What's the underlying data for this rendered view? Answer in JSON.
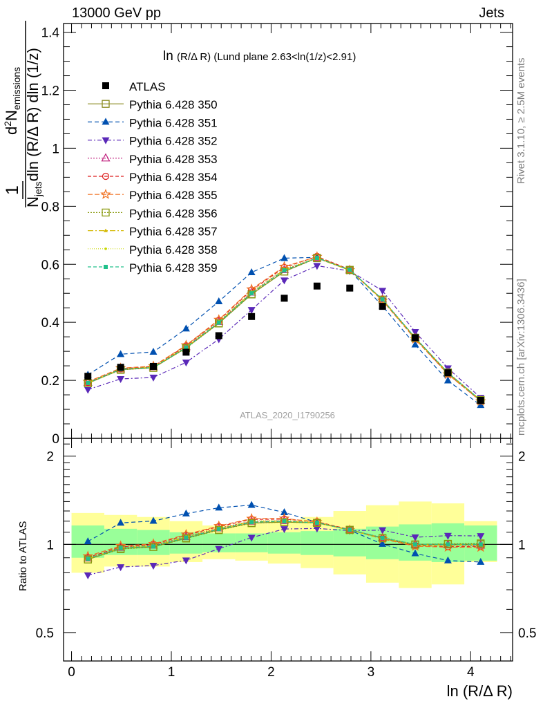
{
  "header": {
    "left": "13000 GeV pp",
    "right": "Jets"
  },
  "side_labels": {
    "rivet": "Rivet 3.1.10, ≥ 2.5M events",
    "mcplots": "mcplots.cern.ch [arXiv:1306.3436]"
  },
  "plot_title_main": "ln",
  "plot_title_sub": "(R/Δ R) (Lund plane 2.63<ln(1/z)<2.91)",
  "watermark": "ATLAS_2020_I1790256",
  "ylabel_top": {
    "frac_num_1": "1",
    "frac_den_1": "N",
    "frac_den_1_sub": "jets",
    "frac_den_1_rest": "dln (R/Δ R) dln (1/z)",
    "frac_num_2": "d",
    "frac_num_2_sup": "2",
    "frac_num_2_n": "N",
    "frac_num_2_sub": "emissions"
  },
  "ylabel_ratio": "Ratio to ATLAS",
  "xlabel": "ln (R/Δ R)",
  "chart_data": {
    "type": "scatter",
    "xlabel": "ln (R/Δ R)",
    "ylabel": "d²N_emissions / (N_jets dln(R/ΔR) dln(1/z))",
    "xlim": [
      -0.08,
      4.42
    ],
    "ylim_main": [
      0,
      1.43
    ],
    "ylim_ratio": [
      0.4,
      2.3
    ],
    "ratio_scale": "log",
    "xticks": [
      "0",
      "1",
      "2",
      "3",
      "4"
    ],
    "yticks_main": [
      "0",
      "0.2",
      "0.4",
      "0.6",
      "0.8",
      "1",
      "1.2",
      "1.4"
    ],
    "yticks_ratio": [
      "0.5",
      "1",
      "2"
    ],
    "x": [
      0.164,
      0.492,
      0.82,
      1.148,
      1.476,
      1.804,
      2.132,
      2.46,
      2.788,
      3.116,
      3.444,
      3.772,
      4.1
    ],
    "bin_edges": [
      0,
      0.328,
      0.656,
      0.984,
      1.312,
      1.64,
      1.968,
      2.296,
      2.624,
      2.952,
      3.28,
      3.608,
      3.936,
      4.264
    ],
    "data": {
      "name": "ATLAS",
      "values": [
        0.214,
        0.245,
        0.248,
        0.297,
        0.354,
        0.42,
        0.483,
        0.525,
        0.518,
        0.455,
        0.347,
        0.226,
        0.131
      ],
      "band_green_ratio": [
        [
          0.9,
          1.16
        ],
        [
          0.92,
          1.13
        ],
        [
          0.92,
          1.12
        ],
        [
          0.93,
          1.1
        ],
        [
          0.94,
          1.09
        ],
        [
          0.94,
          1.09
        ],
        [
          0.93,
          1.1
        ],
        [
          0.92,
          1.11
        ],
        [
          0.91,
          1.13
        ],
        [
          0.89,
          1.15
        ],
        [
          0.88,
          1.17
        ],
        [
          0.87,
          1.18
        ],
        [
          0.88,
          1.16
        ]
      ],
      "band_yellow_ratio": [
        [
          0.8,
          1.28
        ],
        [
          0.84,
          1.26
        ],
        [
          0.84,
          1.24
        ],
        [
          0.87,
          1.2
        ],
        [
          0.89,
          1.16
        ],
        [
          0.88,
          1.18
        ],
        [
          0.86,
          1.2
        ],
        [
          0.83,
          1.24
        ],
        [
          0.79,
          1.3
        ],
        [
          0.74,
          1.36
        ],
        [
          0.71,
          1.4
        ],
        [
          0.73,
          1.38
        ],
        [
          0.87,
          1.2
        ]
      ]
    },
    "series": [
      {
        "name": "Pythia 6.428 350",
        "color": "#8a8a1f",
        "marker": "open-square",
        "dash": "solid",
        "values": [
          0.19,
          0.237,
          0.243,
          0.312,
          0.397,
          0.497,
          0.575,
          0.622,
          0.581,
          0.478,
          0.346,
          0.226,
          0.131
        ]
      },
      {
        "name": "Pythia 6.428 351",
        "color": "#0050b0",
        "marker": "triangle-up",
        "dash": "6,4",
        "values": [
          0.219,
          0.29,
          0.298,
          0.378,
          0.472,
          0.572,
          0.621,
          0.624,
          0.579,
          0.456,
          0.323,
          0.199,
          0.114
        ]
      },
      {
        "name": "Pythia 6.428 352",
        "color": "#5a28b8",
        "marker": "triangle-down",
        "dash": "6,3,2,3",
        "values": [
          0.168,
          0.205,
          0.21,
          0.262,
          0.342,
          0.443,
          0.545,
          0.595,
          0.577,
          0.509,
          0.367,
          0.242,
          0.14
        ]
      },
      {
        "name": "Pythia 6.428 353",
        "color": "#c0207f",
        "marker": "open-triangle-up",
        "dash": "2,2",
        "values": [
          0.192,
          0.239,
          0.246,
          0.315,
          0.402,
          0.503,
          0.581,
          0.622,
          0.58,
          0.48,
          0.347,
          0.225,
          0.13
        ]
      },
      {
        "name": "Pythia 6.428 354",
        "color": "#dd1f1f",
        "marker": "open-circle",
        "dash": "5,3",
        "values": [
          0.193,
          0.24,
          0.248,
          0.319,
          0.407,
          0.511,
          0.589,
          0.627,
          0.582,
          0.477,
          0.344,
          0.222,
          0.129
        ]
      },
      {
        "name": "Pythia 6.428 355",
        "color": "#f07020",
        "marker": "open-star",
        "dash": "7,3",
        "values": [
          0.195,
          0.242,
          0.249,
          0.321,
          0.409,
          0.514,
          0.592,
          0.626,
          0.58,
          0.475,
          0.342,
          0.221,
          0.128
        ]
      },
      {
        "name": "Pythia 6.428 356",
        "color": "#8a9a10",
        "marker": "open-square",
        "dash": "2,2",
        "values": [
          0.19,
          0.236,
          0.243,
          0.311,
          0.396,
          0.496,
          0.575,
          0.621,
          0.58,
          0.478,
          0.347,
          0.227,
          0.132
        ]
      },
      {
        "name": "Pythia 6.428 357",
        "color": "#d4b800",
        "marker": "small-triangle",
        "dash": "8,3,2,3",
        "values": [
          0.191,
          0.238,
          0.245,
          0.314,
          0.4,
          0.502,
          0.58,
          0.621,
          0.579,
          0.478,
          0.346,
          0.225,
          0.131
        ]
      },
      {
        "name": "Pythia 6.428 358",
        "color": "#c8d800",
        "marker": "dot",
        "dash": "1,2",
        "values": [
          0.192,
          0.239,
          0.246,
          0.316,
          0.403,
          0.505,
          0.584,
          0.623,
          0.58,
          0.477,
          0.345,
          0.224,
          0.13
        ]
      },
      {
        "name": "Pythia 6.428 359",
        "color": "#20c08a",
        "marker": "filled-square-small",
        "dash": "5,3",
        "values": [
          0.191,
          0.238,
          0.244,
          0.313,
          0.399,
          0.5,
          0.579,
          0.622,
          0.581,
          0.479,
          0.347,
          0.226,
          0.131
        ]
      }
    ]
  }
}
